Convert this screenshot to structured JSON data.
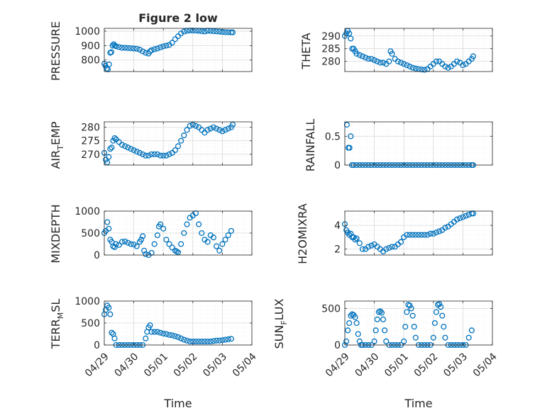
{
  "figure": {
    "title": "Figure 2 low"
  },
  "colors": {
    "marker": "#0072BD",
    "axis": "#262626",
    "grid": "#d9d9d9",
    "minorgrid": "#ececec"
  },
  "chart_data": [
    {
      "type": "scatter",
      "id": "pressure",
      "title": "Figure 2 low",
      "ylabel": "PRESSURE",
      "ylim": [
        720,
        1020
      ],
      "yticks": [
        800,
        900,
        1000
      ],
      "xlim": [
        0,
        5
      ],
      "xticks": [
        0,
        1,
        2,
        3,
        4,
        5
      ],
      "xticklabels": [
        "04/29",
        "04/30",
        "05/01",
        "05/02",
        "05/03",
        "05/04"
      ],
      "grid": true,
      "minor_grid": true,
      "x": [
        0.0,
        0.04,
        0.08,
        0.12,
        0.16,
        0.2,
        0.24,
        0.28,
        0.32,
        0.36,
        0.4,
        0.5,
        0.6,
        0.7,
        0.8,
        0.9,
        1.0,
        1.1,
        1.2,
        1.3,
        1.4,
        1.5,
        1.55,
        1.6,
        1.7,
        1.8,
        1.9,
        2.0,
        2.1,
        2.2,
        2.3,
        2.4,
        2.5,
        2.6,
        2.7,
        2.8,
        2.9,
        3.0,
        3.1,
        3.2,
        3.3,
        3.4,
        3.5,
        3.6,
        3.7,
        3.8,
        3.9,
        4.0,
        4.1,
        4.2,
        4.3,
        4.35
      ],
      "y": [
        775,
        760,
        740,
        735,
        770,
        850,
        855,
        900,
        910,
        900,
        895,
        890,
        885,
        885,
        883,
        882,
        880,
        878,
        872,
        860,
        850,
        845,
        860,
        868,
        875,
        880,
        888,
        895,
        900,
        905,
        920,
        945,
        965,
        985,
        998,
        1003,
        1005,
        1005,
        1004,
        1003,
        1000,
        998,
        1003,
        1002,
        1000,
        999,
        997,
        995,
        994,
        993,
        992,
        992
      ]
    },
    {
      "type": "scatter",
      "id": "theta",
      "ylabel": "THETA",
      "ylim": [
        276,
        293
      ],
      "yticks": [
        280,
        285,
        290
      ],
      "xlim": [
        0,
        5
      ],
      "xticks": [
        0,
        1,
        2,
        3,
        4,
        5
      ],
      "xticklabels": [
        "04/29",
        "04/30",
        "05/01",
        "05/02",
        "05/03",
        "05/04"
      ],
      "grid": true,
      "minor_grid": true,
      "x": [
        0.0,
        0.05,
        0.1,
        0.15,
        0.2,
        0.25,
        0.3,
        0.35,
        0.4,
        0.5,
        0.6,
        0.7,
        0.8,
        0.9,
        1.0,
        1.1,
        1.2,
        1.3,
        1.4,
        1.5,
        1.55,
        1.6,
        1.7,
        1.8,
        1.9,
        2.0,
        2.1,
        2.2,
        2.3,
        2.4,
        2.5,
        2.6,
        2.7,
        2.8,
        2.9,
        3.0,
        3.1,
        3.2,
        3.3,
        3.4,
        3.5,
        3.6,
        3.7,
        3.8,
        3.9,
        4.0,
        4.1,
        4.2,
        4.3,
        4.35
      ],
      "y": [
        290,
        291,
        292,
        291,
        289,
        285,
        285,
        284,
        283,
        282.5,
        282,
        281.5,
        281,
        281,
        280.5,
        280,
        279.5,
        279.5,
        279,
        280,
        284,
        283,
        281,
        280,
        279.5,
        279,
        278.5,
        278,
        277.5,
        277.2,
        277,
        276.8,
        276.7,
        277,
        278,
        279,
        280,
        280,
        279,
        278,
        277.5,
        278,
        279,
        280,
        279.5,
        278.5,
        279,
        280,
        281,
        282
      ]
    },
    {
      "type": "scatter",
      "id": "airtemp",
      "ylabel": "AIR_TEMP",
      "ylim": [
        266,
        282
      ],
      "yticks": [
        270,
        275,
        280
      ],
      "xlim": [
        0,
        5
      ],
      "xticks": [
        0,
        1,
        2,
        3,
        4,
        5
      ],
      "xticklabels": [
        "04/29",
        "04/30",
        "05/01",
        "05/02",
        "05/03",
        "05/04"
      ],
      "grid": true,
      "minor_grid": true,
      "x": [
        0.0,
        0.05,
        0.1,
        0.15,
        0.2,
        0.25,
        0.3,
        0.35,
        0.4,
        0.5,
        0.6,
        0.7,
        0.8,
        0.9,
        1.0,
        1.1,
        1.2,
        1.3,
        1.4,
        1.5,
        1.6,
        1.7,
        1.8,
        1.9,
        2.0,
        2.1,
        2.2,
        2.3,
        2.4,
        2.5,
        2.6,
        2.7,
        2.8,
        2.9,
        3.0,
        3.1,
        3.2,
        3.3,
        3.4,
        3.5,
        3.6,
        3.7,
        3.8,
        3.9,
        4.0,
        4.1,
        4.2,
        4.3,
        4.35
      ],
      "y": [
        270.5,
        268,
        267,
        269,
        272,
        272.5,
        275,
        276,
        275.5,
        274.5,
        273.5,
        273,
        272.5,
        272,
        271.5,
        271,
        270.5,
        270,
        269.5,
        269.5,
        270,
        270,
        270,
        269.5,
        269.5,
        269.5,
        270,
        270.5,
        271.5,
        273,
        275,
        277,
        279,
        280.5,
        281,
        280.5,
        280,
        279,
        278,
        279,
        279.5,
        280,
        279.5,
        279,
        278.5,
        279,
        279.5,
        280,
        281
      ]
    },
    {
      "type": "scatter",
      "id": "rainfall",
      "ylabel": "RAINFALL",
      "ylim": [
        0,
        0.75
      ],
      "yticks": [
        0,
        0.5
      ],
      "xlim": [
        0,
        5
      ],
      "xticks": [
        0,
        1,
        2,
        3,
        4,
        5
      ],
      "xticklabels": [
        "04/29",
        "04/30",
        "05/01",
        "05/02",
        "05/03",
        "05/04"
      ],
      "grid": true,
      "minor_grid": true,
      "x": [
        0.07,
        0.12,
        0.16,
        0.2,
        0.24,
        0.3,
        0.4,
        0.5,
        0.6,
        0.7,
        0.8,
        0.9,
        1.0,
        1.1,
        1.2,
        1.3,
        1.4,
        1.5,
        1.6,
        1.7,
        1.8,
        1.9,
        2.0,
        2.1,
        2.2,
        2.3,
        2.4,
        2.5,
        2.6,
        2.7,
        2.8,
        2.9,
        3.0,
        3.1,
        3.2,
        3.3,
        3.4,
        3.5,
        3.6,
        3.7,
        3.8,
        3.9,
        4.0,
        4.1,
        4.2,
        4.3,
        4.35
      ],
      "y": [
        0.7,
        0.3,
        0.3,
        0.5,
        0.0,
        0.0,
        0.0,
        0.0,
        0.0,
        0.0,
        0.0,
        0.0,
        0.0,
        0.0,
        0.0,
        0.0,
        0.0,
        0.0,
        0.0,
        0.0,
        0.0,
        0.0,
        0.0,
        0.0,
        0.0,
        0.0,
        0.0,
        0.0,
        0.0,
        0.0,
        0.0,
        0.0,
        0.0,
        0.0,
        0.0,
        0.0,
        0.0,
        0.0,
        0.0,
        0.0,
        0.0,
        0.0,
        0.0,
        0.0,
        0.0,
        0.0,
        0.0
      ]
    },
    {
      "type": "scatter",
      "id": "mixdepth",
      "ylabel": "MIXDEPTH",
      "ylim": [
        0,
        1000
      ],
      "yticks": [
        0,
        500,
        1000
      ],
      "xlim": [
        0,
        5
      ],
      "xticks": [
        0,
        1,
        2,
        3,
        4,
        5
      ],
      "xticklabels": [
        "04/29",
        "04/30",
        "05/01",
        "05/02",
        "05/03",
        "05/04"
      ],
      "grid": true,
      "minor_grid": true,
      "x": [
        0.0,
        0.05,
        0.1,
        0.15,
        0.2,
        0.25,
        0.3,
        0.35,
        0.4,
        0.5,
        0.6,
        0.7,
        0.8,
        0.9,
        1.0,
        1.1,
        1.2,
        1.25,
        1.3,
        1.35,
        1.4,
        1.5,
        1.6,
        1.7,
        1.8,
        1.85,
        1.9,
        2.0,
        2.1,
        2.2,
        2.3,
        2.4,
        2.45,
        2.5,
        2.6,
        2.7,
        2.8,
        2.9,
        3.0,
        3.1,
        3.2,
        3.3,
        3.4,
        3.5,
        3.6,
        3.7,
        3.8,
        3.9,
        4.0,
        4.1,
        4.2,
        4.3
      ],
      "y": [
        500,
        550,
        750,
        600,
        350,
        300,
        200,
        180,
        250,
        230,
        300,
        310,
        280,
        250,
        240,
        200,
        300,
        350,
        430,
        100,
        20,
        0,
        50,
        250,
        450,
        650,
        700,
        600,
        350,
        250,
        170,
        100,
        80,
        60,
        250,
        500,
        700,
        850,
        900,
        950,
        700,
        500,
        350,
        300,
        450,
        400,
        200,
        100,
        250,
        350,
        450,
        550
      ]
    },
    {
      "type": "scatter",
      "id": "h2omixra",
      "ylabel": "H2OMIXRA",
      "ylim": [
        1.5,
        5.2
      ],
      "yticks": [
        2,
        4
      ],
      "xlim": [
        0,
        5
      ],
      "xticks": [
        0,
        1,
        2,
        3,
        4,
        5
      ],
      "xticklabels": [
        "04/29",
        "04/30",
        "05/01",
        "05/02",
        "05/03",
        "05/04"
      ],
      "grid": true,
      "minor_grid": true,
      "x": [
        0.0,
        0.05,
        0.1,
        0.15,
        0.2,
        0.25,
        0.3,
        0.35,
        0.4,
        0.5,
        0.6,
        0.7,
        0.8,
        0.9,
        1.0,
        1.1,
        1.2,
        1.3,
        1.4,
        1.5,
        1.6,
        1.7,
        1.8,
        1.9,
        2.0,
        2.1,
        2.2,
        2.3,
        2.4,
        2.5,
        2.6,
        2.7,
        2.8,
        2.9,
        3.0,
        3.1,
        3.2,
        3.3,
        3.4,
        3.5,
        3.6,
        3.7,
        3.8,
        3.9,
        4.0,
        4.1,
        4.2,
        4.3,
        4.35
      ],
      "y": [
        4.1,
        3.6,
        3.4,
        3.2,
        3.3,
        3.0,
        3.0,
        2.8,
        2.9,
        2.5,
        2.0,
        2.0,
        2.2,
        2.3,
        2.4,
        2.2,
        2.0,
        1.8,
        2.0,
        2.1,
        2.2,
        2.2,
        2.4,
        2.6,
        3.0,
        3.2,
        3.2,
        3.2,
        3.2,
        3.2,
        3.2,
        3.2,
        3.2,
        3.3,
        3.3,
        3.4,
        3.5,
        3.6,
        3.8,
        3.9,
        4.1,
        4.3,
        4.5,
        4.6,
        4.7,
        4.8,
        4.9,
        5.0,
        5.0
      ]
    },
    {
      "type": "scatter",
      "id": "terrmsl",
      "ylabel": "TERR_MSL",
      "ylim": [
        0,
        1000
      ],
      "yticks": [
        0,
        500,
        1000
      ],
      "xlabel": "Time",
      "xlim": [
        0,
        5
      ],
      "xticks": [
        0,
        1,
        2,
        3,
        4,
        5
      ],
      "xticklabels": [
        "04/29",
        "04/30",
        "05/01",
        "05/02",
        "05/03",
        "05/04"
      ],
      "grid": true,
      "minor_grid": true,
      "x": [
        0.0,
        0.05,
        0.1,
        0.15,
        0.2,
        0.25,
        0.3,
        0.35,
        0.4,
        0.5,
        0.6,
        0.7,
        0.8,
        0.9,
        1.0,
        1.1,
        1.2,
        1.3,
        1.4,
        1.45,
        1.5,
        1.55,
        1.6,
        1.7,
        1.8,
        1.9,
        2.0,
        2.1,
        2.2,
        2.3,
        2.4,
        2.5,
        2.6,
        2.7,
        2.8,
        2.9,
        3.0,
        3.1,
        3.2,
        3.3,
        3.4,
        3.5,
        3.6,
        3.7,
        3.8,
        3.9,
        4.0,
        4.1,
        4.2,
        4.3
      ],
      "y": [
        700,
        800,
        900,
        850,
        700,
        280,
        250,
        150,
        0,
        0,
        0,
        0,
        0,
        0,
        0,
        0,
        0,
        0,
        150,
        300,
        400,
        450,
        300,
        300,
        300,
        280,
        260,
        250,
        230,
        220,
        200,
        180,
        150,
        120,
        100,
        80,
        80,
        80,
        80,
        80,
        80,
        80,
        80,
        90,
        100,
        100,
        110,
        120,
        130,
        140
      ]
    },
    {
      "type": "scatter",
      "id": "sunflux",
      "ylabel": "SUN_FLUX",
      "ylim": [
        0,
        600
      ],
      "yticks": [
        0,
        500
      ],
      "xlabel": "Time",
      "xlim": [
        0,
        5
      ],
      "xticks": [
        0,
        1,
        2,
        3,
        4,
        5
      ],
      "xticklabels": [
        "04/29",
        "04/30",
        "05/01",
        "05/02",
        "05/03",
        "05/04"
      ],
      "grid": true,
      "minor_grid": true,
      "x": [
        0.0,
        0.05,
        0.1,
        0.15,
        0.2,
        0.25,
        0.3,
        0.35,
        0.4,
        0.45,
        0.5,
        0.55,
        0.6,
        0.7,
        0.8,
        0.9,
        1.0,
        1.05,
        1.1,
        1.15,
        1.2,
        1.25,
        1.3,
        1.35,
        1.4,
        1.5,
        1.6,
        1.7,
        1.8,
        1.9,
        2.0,
        2.05,
        2.1,
        2.15,
        2.2,
        2.25,
        2.3,
        2.35,
        2.4,
        2.5,
        2.6,
        2.7,
        2.8,
        2.9,
        3.0,
        3.05,
        3.1,
        3.15,
        3.2,
        3.25,
        3.3,
        3.35,
        3.4,
        3.5,
        3.6,
        3.7,
        3.8,
        3.9,
        4.0,
        4.1,
        4.2,
        4.3
      ],
      "y": [
        0,
        50,
        200,
        300,
        400,
        420,
        410,
        380,
        300,
        150,
        50,
        0,
        0,
        0,
        0,
        0,
        50,
        200,
        350,
        450,
        460,
        440,
        350,
        200,
        50,
        0,
        0,
        0,
        0,
        0,
        50,
        250,
        450,
        550,
        540,
        500,
        400,
        250,
        100,
        0,
        0,
        0,
        0,
        0,
        100,
        300,
        450,
        550,
        560,
        520,
        400,
        250,
        100,
        0,
        0,
        0,
        0,
        0,
        0,
        0,
        100,
        200
      ]
    }
  ]
}
